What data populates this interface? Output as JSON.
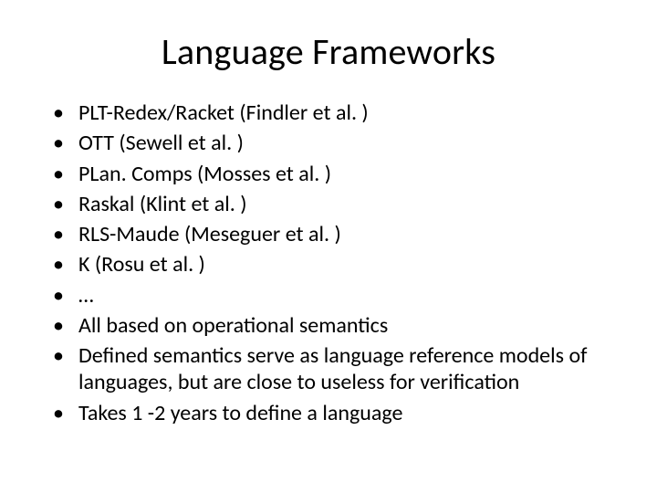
{
  "slide": {
    "title": "Language Frameworks",
    "bullets": [
      "PLT-Redex/Racket (Findler et al. )",
      "OTT (Sewell et al. )",
      "PLan. Comps (Mosses et al. )",
      "Raskal (Klint et al. )",
      "RLS-Maude (Meseguer et al. )",
      "K (Rosu et al. )",
      "…",
      "All based on operational semantics",
      "Defined semantics serve as language reference models of  languages, but are close to useless for verification",
      "Takes 1 -2 years to define a language"
    ],
    "style": {
      "background_color": "#ffffff",
      "text_color": "#000000",
      "title_fontsize": 40,
      "body_fontsize": 24,
      "font_family": "Calibri"
    }
  }
}
